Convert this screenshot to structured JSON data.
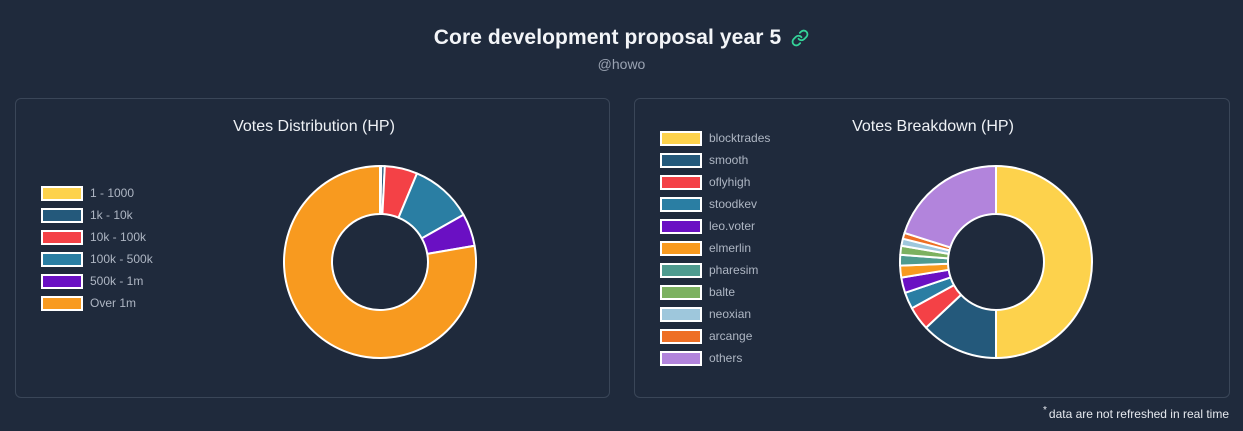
{
  "header": {
    "title": "Core development proposal year 5",
    "subtitle": "@howo",
    "link_icon": "link-icon",
    "link_color": "#34d399"
  },
  "cards": [
    {
      "title": "Votes Distribution (HP)",
      "chart_data": {
        "type": "pie",
        "variant": "donut",
        "title": "Votes Distribution (HP)",
        "legend_position": "left",
        "categories": [
          "1 - 1000",
          "1k - 10k",
          "10k - 100k",
          "100k - 500k",
          "500k - 1m",
          "Over 1m"
        ],
        "values": [
          0.2,
          0.6,
          5.5,
          10.5,
          5.5,
          77.7
        ],
        "colors": [
          "#fdd24c",
          "#24597b",
          "#f44146",
          "#2a7ea3",
          "#6a10c3",
          "#f89a1f"
        ]
      }
    },
    {
      "title": "Votes Breakdown (HP)",
      "chart_data": {
        "type": "pie",
        "variant": "donut",
        "title": "Votes Breakdown (HP)",
        "legend_position": "left",
        "categories": [
          "blocktrades",
          "smooth",
          "oflyhigh",
          "stoodkev",
          "leo.voter",
          "elmerlin",
          "pharesim",
          "balte",
          "neoxian",
          "arcange",
          "others"
        ],
        "values": [
          50.0,
          13.0,
          4.0,
          2.8,
          2.6,
          2.0,
          1.8,
          1.5,
          1.2,
          1.0,
          20.1
        ],
        "colors": [
          "#fdd24c",
          "#24597b",
          "#f44146",
          "#2a7ea3",
          "#6a10c3",
          "#f89a1f",
          "#4e9b8f",
          "#7cb160",
          "#9ec7dc",
          "#ee6f25",
          "#b284dc"
        ]
      }
    }
  ],
  "footnote": {
    "marker": "*",
    "text": "data are not refreshed in real time"
  }
}
